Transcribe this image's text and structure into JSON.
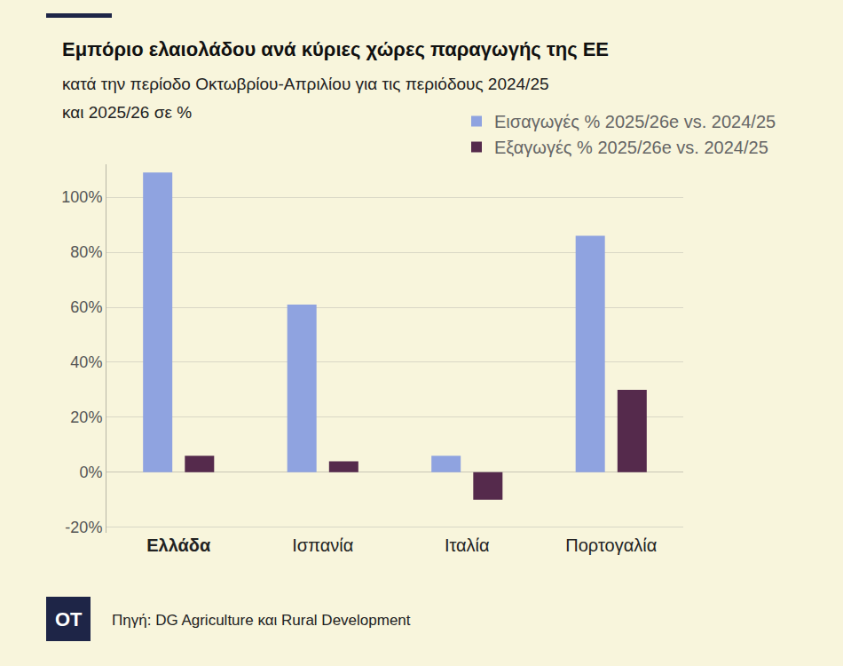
{
  "chart_data": {
    "type": "bar",
    "title": "Εμπόριο ελαιολάδου ανά κύριες χώρες παραγωγής της ΕΕ",
    "subtitle": "κατά την περίοδο Οκτωβρίου-Απριλίου για τις περιόδους 2024/25\nκαι 2025/26 σε %",
    "categories": [
      "Ελλάδα",
      "Ισπανία",
      "Ιταλία",
      "Πορτογαλία"
    ],
    "series": [
      {
        "name": "Εισαγωγές % 2025/26e vs. 2024/25",
        "color": "#8fa3e0",
        "values": [
          109,
          61,
          6,
          86
        ]
      },
      {
        "name": "Εξαγωγές % 2025/26e vs. 2024/25",
        "color": "#552a4c",
        "values": [
          6,
          4,
          -10,
          30
        ]
      }
    ],
    "ylim": [
      -22,
      112
    ],
    "yticks": [
      {
        "value": -20,
        "label": "-20%"
      },
      {
        "value": 0,
        "label": "0%"
      },
      {
        "value": 20,
        "label": "20%"
      },
      {
        "value": 40,
        "label": "40%"
      },
      {
        "value": 60,
        "label": "60%"
      },
      {
        "value": 80,
        "label": "80%"
      },
      {
        "value": 100,
        "label": "100%"
      }
    ],
    "grid": true,
    "legend": "top right",
    "source": "Πηγή: DG Agriculture και Rural Development",
    "logo": "OT"
  }
}
